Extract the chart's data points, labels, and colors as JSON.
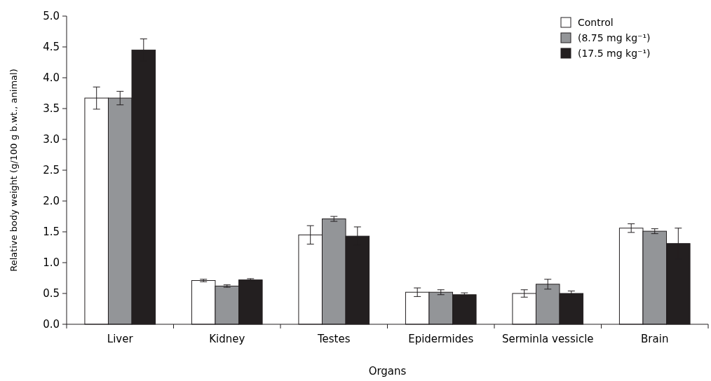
{
  "chart_data": {
    "type": "bar",
    "xlabel": "Organs",
    "ylabel": "Relative body weight (g/100 g b.wt., animal)",
    "categories": [
      "Liver",
      "Kidney",
      "Testes",
      "Epidermides",
      "Serminla vessicle",
      "Brain"
    ],
    "series": [
      {
        "name": "Control",
        "color": "#ffffff",
        "values": [
          3.67,
          0.71,
          1.45,
          0.52,
          0.5,
          1.56
        ],
        "errors": [
          0.18,
          0.02,
          0.15,
          0.07,
          0.06,
          0.07
        ]
      },
      {
        "name": "(8.75 mg kg⁻¹)",
        "color": "#939598",
        "values": [
          3.67,
          0.62,
          1.71,
          0.52,
          0.65,
          1.51
        ],
        "errors": [
          0.11,
          0.02,
          0.04,
          0.04,
          0.08,
          0.04
        ]
      },
      {
        "name": "(17.5 mg kg⁻¹)",
        "color": "#231f20",
        "values": [
          4.45,
          0.72,
          1.43,
          0.48,
          0.5,
          1.31
        ],
        "errors": [
          0.18,
          0.02,
          0.15,
          0.03,
          0.04,
          0.25
        ]
      }
    ],
    "ylim": [
      0,
      5
    ],
    "yticks": [
      {
        "value": 0,
        "label": "0.0"
      },
      {
        "value": 0.5,
        "label": "0.5"
      },
      {
        "value": 1,
        "label": "1.0"
      },
      {
        "value": 1.5,
        "label": "1.5"
      },
      {
        "value": 2,
        "label": "2.0"
      },
      {
        "value": 2.5,
        "label": "2.5"
      },
      {
        "value": 3,
        "label": "3.0"
      },
      {
        "value": 3.5,
        "label": "3.5"
      },
      {
        "value": 4,
        "label": "4.0"
      },
      {
        "value": 4.5,
        "label": "4.5"
      },
      {
        "value": 5,
        "label": "5.0"
      }
    ],
    "grid": false,
    "legend": "top right"
  }
}
